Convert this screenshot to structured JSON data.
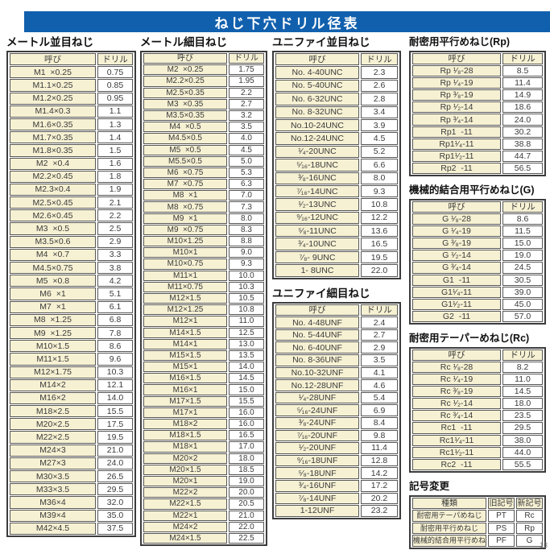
{
  "title": "ねじ下穴ドリル径表",
  "page_number": "13",
  "colors": {
    "accent_blue": "#1160ae",
    "cell_beige": "#f6f1d3",
    "border_gray": "#565656"
  },
  "headers": {
    "name": "呼び",
    "drill": "ドリル"
  },
  "tables": {
    "metric_coarse": {
      "title": "メートル並目ねじ",
      "rows": [
        [
          "M1  ×0.25",
          "0.75"
        ],
        [
          "M1.1×0.25",
          "0.85"
        ],
        [
          "M1.2×0.25",
          "0.95"
        ],
        [
          "M1.4×0.3",
          "1.1"
        ],
        [
          "M1.6×0.35",
          "1.3"
        ],
        [
          "M1.7×0.35",
          "1.4"
        ],
        [
          "M1.8×0.35",
          "1.5"
        ],
        [
          "M2  ×0.4",
          "1.6"
        ],
        [
          "M2.2×0.45",
          "1.8"
        ],
        [
          "M2.3×0.4",
          "1.9"
        ],
        [
          "M2.5×0.45",
          "2.1"
        ],
        [
          "M2.6×0.45",
          "2.2"
        ],
        [
          "M3  ×0.5",
          "2.5"
        ],
        [
          "M3.5×0.6",
          "2.9"
        ],
        [
          "M4  ×0.7",
          "3.3"
        ],
        [
          "M4.5×0.75",
          "3.8"
        ],
        [
          "M5  ×0.8",
          "4.2"
        ],
        [
          "M6  ×1",
          "5.1"
        ],
        [
          "M7  ×1",
          "6.1"
        ],
        [
          "M8  ×1.25",
          "6.8"
        ],
        [
          "M9  ×1.25",
          "7.8"
        ],
        [
          "M10×1.5",
          "8.6"
        ],
        [
          "M11×1.5",
          "9.6"
        ],
        [
          "M12×1.75",
          "10.3"
        ],
        [
          "M14×2",
          "12.1"
        ],
        [
          "M16×2",
          "14.0"
        ],
        [
          "M18×2.5",
          "15.5"
        ],
        [
          "M20×2.5",
          "17.5"
        ],
        [
          "M22×2.5",
          "19.5"
        ],
        [
          "M24×3",
          "21.0"
        ],
        [
          "M27×3",
          "24.0"
        ],
        [
          "M30×3.5",
          "26.5"
        ],
        [
          "M33×3.5",
          "29.5"
        ],
        [
          "M36×4",
          "32.0"
        ],
        [
          "M39×4",
          "35.0"
        ],
        [
          "M42×4.5",
          "37.5"
        ]
      ]
    },
    "metric_fine": {
      "title": "メートル細目ねじ",
      "rows": [
        [
          "M2  ×0.25",
          "1.75"
        ],
        [
          "M2.2×0.25",
          "1.95"
        ],
        [
          "M2.5×0.35",
          "2.2"
        ],
        [
          "M3  ×0.35",
          "2.7"
        ],
        [
          "M3.5×0.35",
          "3.2"
        ],
        [
          "M4  ×0.5",
          "3.5"
        ],
        [
          "M4.5×0.5",
          "4.0"
        ],
        [
          "M5  ×0.5",
          "4.5"
        ],
        [
          "M5.5×0.5",
          "5.0"
        ],
        [
          "M6  ×0.75",
          "5.3"
        ],
        [
          "M7  ×0.75",
          "6.3"
        ],
        [
          "M8  ×1",
          "7.0"
        ],
        [
          "M8  ×0.75",
          "7.3"
        ],
        [
          "M9  ×1",
          "8.0"
        ],
        [
          "M9  ×0.75",
          "8.3"
        ],
        [
          "M10×1.25",
          "8.8"
        ],
        [
          "M10×1",
          "9.0"
        ],
        [
          "M10×0.75",
          "9.3"
        ],
        [
          "M11×1",
          "10.0"
        ],
        [
          "M11×0.75",
          "10.3"
        ],
        [
          "M12×1.5",
          "10.5"
        ],
        [
          "M12×1.25",
          "10.8"
        ],
        [
          "M12×1",
          "11.0"
        ],
        [
          "M14×1.5",
          "12.5"
        ],
        [
          "M14×1",
          "13.0"
        ],
        [
          "M15×1.5",
          "13.5"
        ],
        [
          "M15×1",
          "14.0"
        ],
        [
          "M16×1.5",
          "14.5"
        ],
        [
          "M16×1",
          "15.0"
        ],
        [
          "M17×1.5",
          "15.5"
        ],
        [
          "M17×1",
          "16.0"
        ],
        [
          "M18×2",
          "16.0"
        ],
        [
          "M18×1.5",
          "16.5"
        ],
        [
          "M18×1",
          "17.0"
        ],
        [
          "M20×2",
          "18.0"
        ],
        [
          "M20×1.5",
          "18.5"
        ],
        [
          "M20×1",
          "19.0"
        ],
        [
          "M22×2",
          "20.0"
        ],
        [
          "M22×1.5",
          "20.5"
        ],
        [
          "M22×1",
          "21.0"
        ],
        [
          "M24×2",
          "22.0"
        ],
        [
          "M24×1.5",
          "22.5"
        ]
      ]
    },
    "unified_coarse": {
      "title": "ユニファイ並目ねじ",
      "rows": [
        [
          "No. 4-40UNC",
          "2.3"
        ],
        [
          "No. 5-40UNC",
          "2.6"
        ],
        [
          "No. 6-32UNC",
          "2.8"
        ],
        [
          "No. 8-32UNC",
          "3.4"
        ],
        [
          "No.10-24UNC",
          "3.9"
        ],
        [
          "No.12-24UNC",
          "4.5"
        ],
        [
          "¹⁄₄-20UNC",
          "5.2"
        ],
        [
          "⁵⁄₁₆-18UNC",
          "6.6"
        ],
        [
          "³⁄₈-16UNC",
          "8.0"
        ],
        [
          "⁷⁄₁₆-14UNC",
          "9.3"
        ],
        [
          "¹⁄₂-13UNC",
          "10.8"
        ],
        [
          "⁹⁄₁₆-12UNC",
          "12.2"
        ],
        [
          "⁵⁄₈-11UNC",
          "13.6"
        ],
        [
          "³⁄₄-10UNC",
          "16.5"
        ],
        [
          "⁷⁄₈- 9UNC",
          "19.5"
        ],
        [
          "1- 8UNC",
          "22.0"
        ]
      ]
    },
    "unified_fine": {
      "title": "ユニファイ細目ねじ",
      "rows": [
        [
          "No. 4-48UNF",
          "2.4"
        ],
        [
          "No. 5-44UNF",
          "2.7"
        ],
        [
          "No. 6-40UNF",
          "2.9"
        ],
        [
          "No. 8-36UNF",
          "3.5"
        ],
        [
          "No.10-32UNF",
          "4.1"
        ],
        [
          "No.12-28UNF",
          "4.6"
        ],
        [
          "¹⁄₄-28UNF",
          "5.4"
        ],
        [
          "⁵⁄₁₆-24UNF",
          "6.9"
        ],
        [
          "³⁄₈-24UNF",
          "8.4"
        ],
        [
          "⁷⁄₁₆-20UNF",
          "9.8"
        ],
        [
          "¹⁄₂-20UNF",
          "11.4"
        ],
        [
          "⁹⁄₁₆-18UNF",
          "12.8"
        ],
        [
          "⁵⁄₈-18UNF",
          "14.2"
        ],
        [
          "³⁄₄-16UNF",
          "17.2"
        ],
        [
          "⁷⁄₈-14UNF",
          "20.2"
        ],
        [
          "1-12UNF",
          "23.2"
        ]
      ]
    },
    "rp": {
      "title": "耐密用平行めねじ(Rp)",
      "rows": [
        [
          "Rp ¹⁄₈-28",
          "8.5"
        ],
        [
          "Rp ¹⁄₄-19",
          "11.4"
        ],
        [
          "Rp ³⁄₈-19",
          "14.9"
        ],
        [
          "Rp ¹⁄₂-14",
          "18.6"
        ],
        [
          "Rp ³⁄₄-14",
          "24.0"
        ],
        [
          "Rp1  -11",
          "30.2"
        ],
        [
          "Rp1¹⁄₄-11",
          "38.8"
        ],
        [
          "Rp1¹⁄₂-11",
          "44.7"
        ],
        [
          "Rp2  -11",
          "56.5"
        ]
      ]
    },
    "g": {
      "title": "機械的結合用平行めねじ(G)",
      "rows": [
        [
          "G ¹⁄₈-28",
          "8.6"
        ],
        [
          "G ¹⁄₄-19",
          "11.5"
        ],
        [
          "G ³⁄₈-19",
          "15.0"
        ],
        [
          "G ¹⁄₂-14",
          "19.0"
        ],
        [
          "G ³⁄₄-14",
          "24.5"
        ],
        [
          "G1  -11",
          "30.5"
        ],
        [
          "G1¹⁄₄-11",
          "39.0"
        ],
        [
          "G1¹⁄₂-11",
          "45.0"
        ],
        [
          "G2  -11",
          "57.0"
        ]
      ]
    },
    "rc": {
      "title": "耐密用テーパーめねじ(Rc)",
      "rows": [
        [
          "Rc ¹⁄₈-28",
          "8.2"
        ],
        [
          "Rc ¹⁄₄-19",
          "11.0"
        ],
        [
          "Rc ³⁄₈-19",
          "14.5"
        ],
        [
          "Rc ¹⁄₂-14",
          "18.0"
        ],
        [
          "Rc ³⁄₄-14",
          "23.5"
        ],
        [
          "Rc1  -11",
          "29.5"
        ],
        [
          "Rc1¹⁄₄-11",
          "38.0"
        ],
        [
          "Rc1¹⁄₂-11",
          "44.0"
        ],
        [
          "Rc2  -11",
          "55.5"
        ]
      ]
    },
    "symbol_change": {
      "title": "記号変更",
      "headers": [
        "種類",
        "旧記号",
        "新記号"
      ],
      "rows": [
        [
          "耐密用テーパめねじ",
          "PT",
          "Rc"
        ],
        [
          "耐密用平行めねじ",
          "PS",
          "Rp"
        ],
        [
          "機械的結合用平行めねじ",
          "PF",
          "G"
        ]
      ]
    }
  }
}
